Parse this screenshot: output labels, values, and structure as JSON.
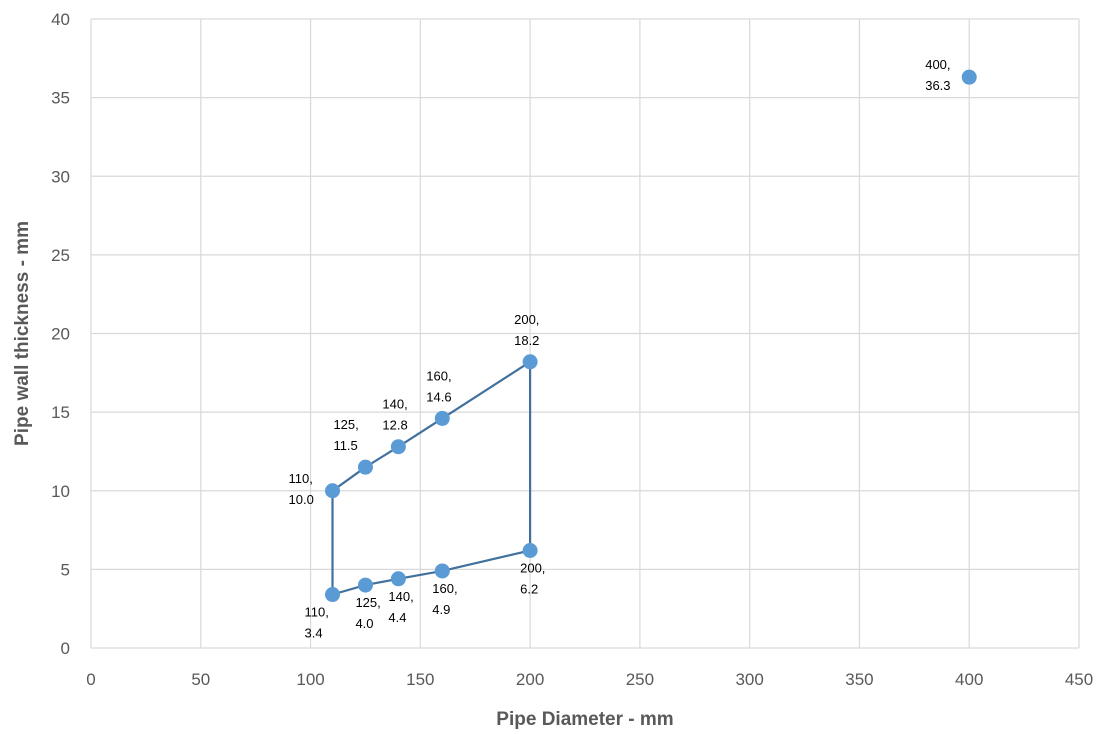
{
  "chart_data": {
    "type": "scatter",
    "title": "",
    "xlabel": "Pipe Diameter - mm",
    "ylabel": "Pipe wall thickness - mm",
    "xlim": [
      0,
      450
    ],
    "ylim": [
      0,
      40
    ],
    "x_ticks": [
      0,
      50,
      100,
      150,
      200,
      250,
      300,
      350,
      400,
      450
    ],
    "y_ticks": [
      0,
      5,
      10,
      15,
      20,
      25,
      30,
      35,
      40
    ],
    "grid": true,
    "legend": "none",
    "colors": {
      "marker": "#5B9BD5",
      "line": "#41719C",
      "grid": "#D9D9D9",
      "text": "#595959"
    },
    "series": [
      {
        "connected": true,
        "points": [
          {
            "x": 110,
            "y": 3.4,
            "label": [
              "110,",
              "3.4"
            ],
            "label_pos": "below-left"
          },
          {
            "x": 125,
            "y": 4.0,
            "label": [
              "125,",
              "4.0"
            ],
            "label_pos": "below"
          },
          {
            "x": 140,
            "y": 4.4,
            "label": [
              "140,",
              "4.4"
            ],
            "label_pos": "below"
          },
          {
            "x": 160,
            "y": 4.9,
            "label": [
              "160,",
              "4.9"
            ],
            "label_pos": "below"
          },
          {
            "x": 200,
            "y": 6.2,
            "label": [
              "200,",
              "6.2"
            ],
            "label_pos": "below"
          },
          {
            "x": 200,
            "y": 18.2,
            "label": [
              "200,",
              "18.2"
            ],
            "label_pos": "above"
          },
          {
            "x": 160,
            "y": 14.6,
            "label": [
              "160,",
              "14.6"
            ],
            "label_pos": "above"
          },
          {
            "x": 140,
            "y": 12.8,
            "label": [
              "140,",
              "12.8"
            ],
            "label_pos": "above"
          },
          {
            "x": 125,
            "y": 11.5,
            "label": [
              "125,",
              "11.5"
            ],
            "label_pos": "above-left"
          },
          {
            "x": 110,
            "y": 10.0,
            "label": [
              "110,",
              "10.0"
            ],
            "label_pos": "left"
          },
          {
            "x": 110,
            "y": 3.4,
            "label": null,
            "label_pos": "none"
          }
        ]
      },
      {
        "connected": false,
        "points": [
          {
            "x": 400,
            "y": 36.3,
            "label": [
              "400,",
              "36.3"
            ],
            "label_pos": "left"
          }
        ]
      }
    ]
  }
}
